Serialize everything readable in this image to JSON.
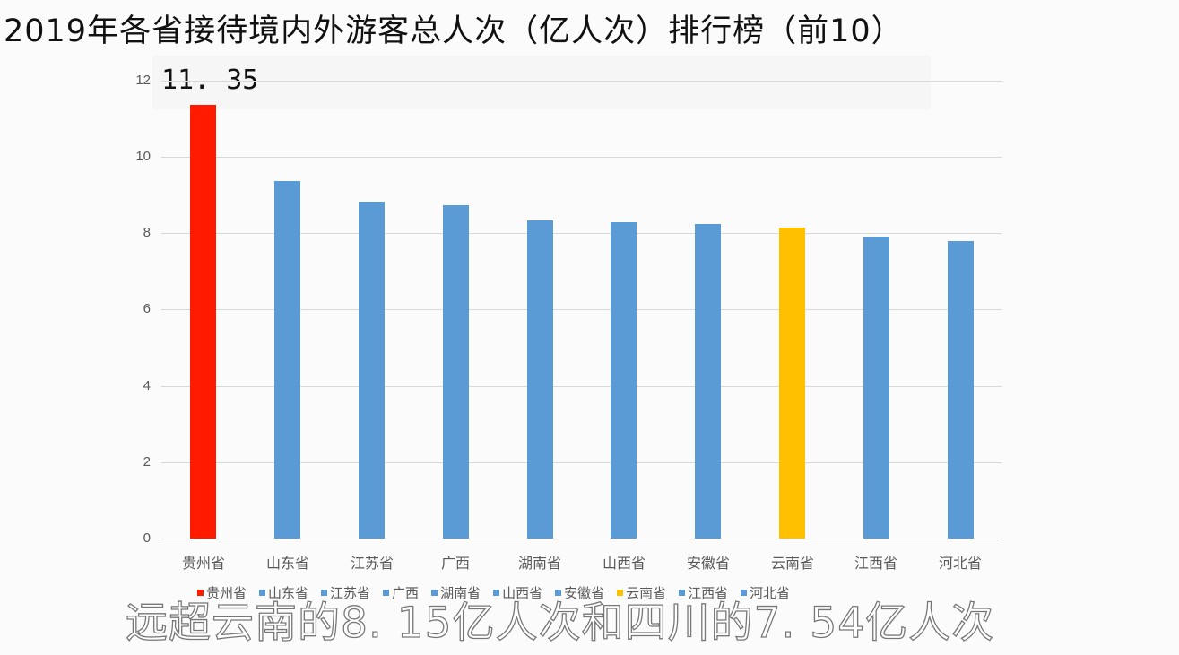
{
  "title": "2019年各省接待境内外游客总人次（亿人次）排行榜（前10）",
  "chart_data": {
    "type": "bar",
    "title": "2019年各省接待境内外游客总人次（亿人次）排行榜（前10）",
    "xlabel": "",
    "ylabel": "",
    "ylim": [
      0,
      12
    ],
    "yticks": [
      "0",
      "2",
      "4",
      "6",
      "8",
      "10",
      "12"
    ],
    "grid": true,
    "legend_position": "bottom",
    "categories": [
      "贵州省",
      "山东省",
      "江苏省",
      "广西",
      "湖南省",
      "山西省",
      "安徽省",
      "云南省",
      "江西省",
      "河北省"
    ],
    "values": [
      11.35,
      9.37,
      8.83,
      8.73,
      8.33,
      8.29,
      8.25,
      8.15,
      7.91,
      7.79
    ],
    "colors": [
      "#ff1a00",
      "#5b9bd5",
      "#5b9bd5",
      "#5b9bd5",
      "#5b9bd5",
      "#5b9bd5",
      "#5b9bd5",
      "#ffc000",
      "#5b9bd5",
      "#5b9bd5"
    ],
    "annotations": [
      {
        "category": "贵州省",
        "text": "11.35"
      }
    ]
  },
  "data_label": "11. 35",
  "legend": [
    "贵州省",
    "山东省",
    "江苏省",
    "广西",
    "湖南省",
    "山西省",
    "安徽省",
    "云南省",
    "江西省",
    "河北省"
  ],
  "caption": "远超云南的8. 15亿人次和四川的7. 54亿人次"
}
